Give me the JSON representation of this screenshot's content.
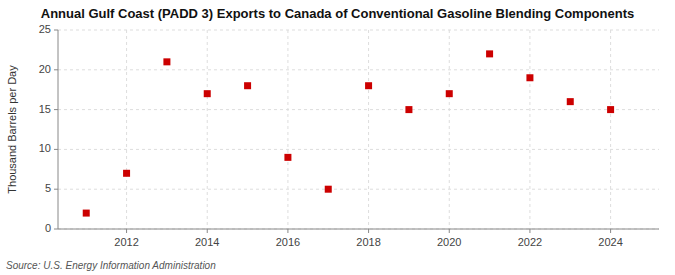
{
  "chart_data": {
    "type": "scatter",
    "title": "Annual Gulf Coast (PADD 3) Exports to Canada of Conventional Gasoline Blending Components",
    "ylabel": "Thousand Barrels per Day",
    "source": "Source: U.S. Energy Information Administration",
    "x": [
      2011,
      2012,
      2013,
      2014,
      2015,
      2016,
      2017,
      2018,
      2019,
      2020,
      2021,
      2022,
      2023,
      2024
    ],
    "values": [
      2.0,
      7.0,
      21.0,
      17.0,
      18.0,
      9.0,
      5.0,
      18.0,
      15.0,
      17.0,
      22.0,
      19.0,
      16.0,
      15.0
    ],
    "color": "#cc0000",
    "marker": "square",
    "xlim": [
      2010.3,
      2025.2
    ],
    "xticks": [
      2012,
      2014,
      2016,
      2018,
      2020,
      2022,
      2024
    ],
    "ylim": [
      0,
      25
    ],
    "yticks": [
      0,
      5,
      10,
      15,
      20,
      25
    ],
    "grid": true
  }
}
